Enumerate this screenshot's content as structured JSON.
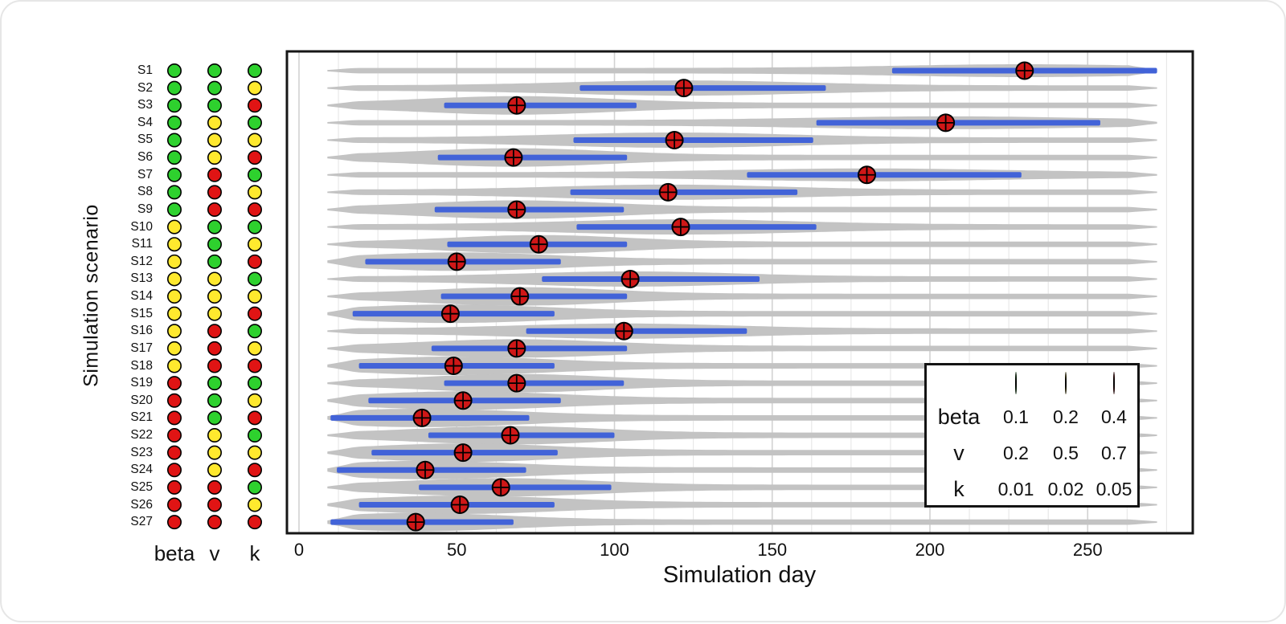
{
  "figure": {
    "y_axis_label": "Simulation scenario",
    "x_axis_label": "Simulation day"
  },
  "legend": {
    "swatch_colors": [
      "#2ed12e",
      "#ffe92e",
      "#e01414"
    ],
    "rows": [
      {
        "label": "beta",
        "values": [
          "0.1",
          "0.2",
          "0.4"
        ]
      },
      {
        "label": "v",
        "values": [
          "0.2",
          "0.5",
          "0.7"
        ]
      },
      {
        "label": "k",
        "values": [
          "0.01",
          "0.02",
          "0.05"
        ]
      }
    ]
  },
  "chart_data": {
    "type": "violin",
    "description": "Violin distributions per scenario with blue interval bar and red circle-plus median marker; left dot matrix encodes parameter levels (green=low, yellow=mid, red=high).",
    "title": "",
    "xlabel": "Simulation day",
    "ylabel": "Simulation scenario",
    "x_ticks": [
      0,
      50,
      100,
      150,
      200,
      250
    ],
    "x_range": [
      0,
      283
    ],
    "grid": "vertical-minor",
    "param_columns": [
      "beta",
      "v",
      "k"
    ],
    "param_levels": {
      "green": {
        "beta": 0.1,
        "v": 0.2,
        "k": 0.01
      },
      "yellow": {
        "beta": 0.2,
        "v": 0.5,
        "k": 0.02
      },
      "red": {
        "beta": 0.4,
        "v": 0.7,
        "k": 0.05
      }
    },
    "colors": {
      "green": "#2ed12e",
      "yellow": "#ffe92e",
      "red": "#e01414",
      "bar": "#4263d8",
      "violin": "#c3c3c3",
      "marker": "#cf1717",
      "grid_major": "#d2d2d2",
      "grid_minor": "#e4e4e4"
    },
    "scenarios": [
      {
        "id": "S1",
        "beta": "green",
        "v": "green",
        "k": "green",
        "median": 230,
        "interval": [
          188,
          272
        ],
        "violin": [
          9,
          272
        ]
      },
      {
        "id": "S2",
        "beta": "green",
        "v": "green",
        "k": "yellow",
        "median": 122,
        "interval": [
          89,
          167
        ],
        "violin": [
          9,
          272
        ]
      },
      {
        "id": "S3",
        "beta": "green",
        "v": "green",
        "k": "red",
        "median": 69,
        "interval": [
          46,
          107
        ],
        "violin": [
          9,
          272
        ]
      },
      {
        "id": "S4",
        "beta": "green",
        "v": "yellow",
        "k": "green",
        "median": 205,
        "interval": [
          164,
          254
        ],
        "violin": [
          9,
          272
        ]
      },
      {
        "id": "S5",
        "beta": "green",
        "v": "yellow",
        "k": "yellow",
        "median": 119,
        "interval": [
          87,
          163
        ],
        "violin": [
          9,
          272
        ]
      },
      {
        "id": "S6",
        "beta": "green",
        "v": "yellow",
        "k": "red",
        "median": 68,
        "interval": [
          44,
          104
        ],
        "violin": [
          9,
          272
        ]
      },
      {
        "id": "S7",
        "beta": "green",
        "v": "red",
        "k": "green",
        "median": 180,
        "interval": [
          142,
          229
        ],
        "violin": [
          9,
          272
        ]
      },
      {
        "id": "S8",
        "beta": "green",
        "v": "red",
        "k": "yellow",
        "median": 117,
        "interval": [
          86,
          158
        ],
        "violin": [
          9,
          272
        ]
      },
      {
        "id": "S9",
        "beta": "green",
        "v": "red",
        "k": "red",
        "median": 69,
        "interval": [
          43,
          103
        ],
        "violin": [
          9,
          272
        ]
      },
      {
        "id": "S10",
        "beta": "yellow",
        "v": "green",
        "k": "green",
        "median": 121,
        "interval": [
          88,
          164
        ],
        "violin": [
          9,
          272
        ]
      },
      {
        "id": "S11",
        "beta": "yellow",
        "v": "green",
        "k": "yellow",
        "median": 76,
        "interval": [
          47,
          104
        ],
        "violin": [
          9,
          272
        ]
      },
      {
        "id": "S12",
        "beta": "yellow",
        "v": "green",
        "k": "red",
        "median": 50,
        "interval": [
          21,
          83
        ],
        "violin": [
          9,
          272
        ]
      },
      {
        "id": "S13",
        "beta": "yellow",
        "v": "yellow",
        "k": "green",
        "median": 105,
        "interval": [
          77,
          146
        ],
        "violin": [
          9,
          272
        ]
      },
      {
        "id": "S14",
        "beta": "yellow",
        "v": "yellow",
        "k": "yellow",
        "median": 70,
        "interval": [
          45,
          104
        ],
        "violin": [
          9,
          272
        ]
      },
      {
        "id": "S15",
        "beta": "yellow",
        "v": "yellow",
        "k": "red",
        "median": 48,
        "interval": [
          17,
          81
        ],
        "violin": [
          9,
          272
        ]
      },
      {
        "id": "S16",
        "beta": "yellow",
        "v": "red",
        "k": "green",
        "median": 103,
        "interval": [
          72,
          142
        ],
        "violin": [
          9,
          272
        ]
      },
      {
        "id": "S17",
        "beta": "yellow",
        "v": "red",
        "k": "yellow",
        "median": 69,
        "interval": [
          42,
          104
        ],
        "violin": [
          9,
          272
        ]
      },
      {
        "id": "S18",
        "beta": "yellow",
        "v": "red",
        "k": "red",
        "median": 49,
        "interval": [
          19,
          81
        ],
        "violin": [
          9,
          272
        ]
      },
      {
        "id": "S19",
        "beta": "red",
        "v": "green",
        "k": "green",
        "median": 69,
        "interval": [
          46,
          103
        ],
        "violin": [
          9,
          272
        ]
      },
      {
        "id": "S20",
        "beta": "red",
        "v": "green",
        "k": "yellow",
        "median": 52,
        "interval": [
          22,
          83
        ],
        "violin": [
          9,
          272
        ]
      },
      {
        "id": "S21",
        "beta": "red",
        "v": "green",
        "k": "red",
        "median": 39,
        "interval": [
          10,
          73
        ],
        "violin": [
          9,
          272
        ]
      },
      {
        "id": "S22",
        "beta": "red",
        "v": "yellow",
        "k": "green",
        "median": 67,
        "interval": [
          41,
          100
        ],
        "violin": [
          9,
          272
        ]
      },
      {
        "id": "S23",
        "beta": "red",
        "v": "yellow",
        "k": "yellow",
        "median": 52,
        "interval": [
          23,
          82
        ],
        "violin": [
          9,
          272
        ]
      },
      {
        "id": "S24",
        "beta": "red",
        "v": "yellow",
        "k": "red",
        "median": 40,
        "interval": [
          12,
          72
        ],
        "violin": [
          9,
          272
        ]
      },
      {
        "id": "S25",
        "beta": "red",
        "v": "red",
        "k": "green",
        "median": 64,
        "interval": [
          38,
          99
        ],
        "violin": [
          9,
          272
        ]
      },
      {
        "id": "S26",
        "beta": "red",
        "v": "red",
        "k": "yellow",
        "median": 51,
        "interval": [
          19,
          81
        ],
        "violin": [
          9,
          272
        ]
      },
      {
        "id": "S27",
        "beta": "red",
        "v": "red",
        "k": "red",
        "median": 37,
        "interval": [
          10,
          68
        ],
        "violin": [
          9,
          272
        ]
      }
    ]
  }
}
